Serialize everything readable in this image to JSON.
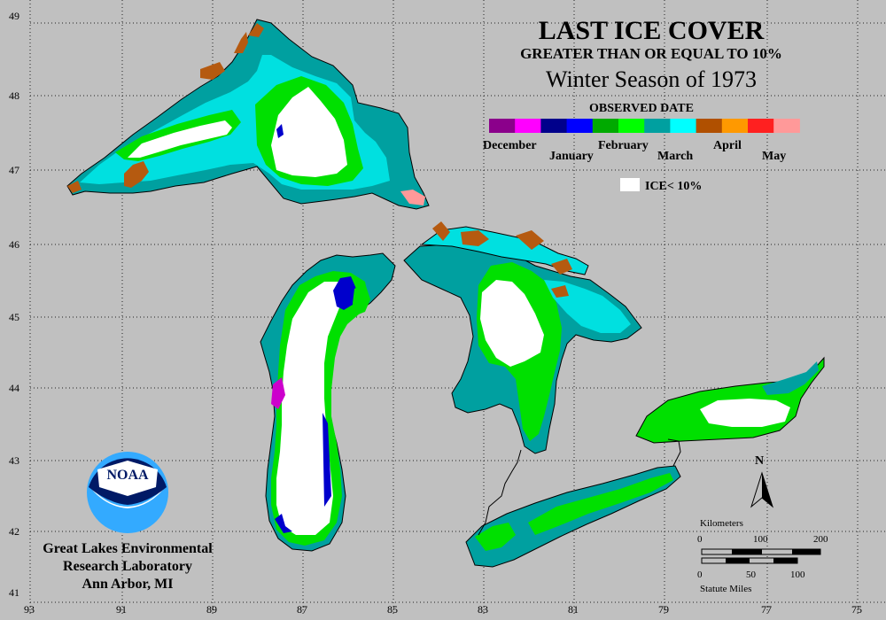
{
  "title": {
    "line1": "LAST ICE COVER",
    "line2": "GREATER THAN OR EQUAL TO 10%",
    "line3": "Winter Season of 1973"
  },
  "legend": {
    "header": "OBSERVED DATE",
    "months_top": [
      "December",
      "February",
      "April"
    ],
    "months_bottom": [
      "January",
      "March",
      "May"
    ],
    "swatches": [
      "#8b008b",
      "#ff00ff",
      "#00008b",
      "#0000ff",
      "#00aa00",
      "#00ff00",
      "#00a0a0",
      "#00ffff",
      "#b05000",
      "#ff9900",
      "#ff2020",
      "#ff9999"
    ],
    "ice_label": "ICE< 10%"
  },
  "axes": {
    "lat_labels": [
      "49",
      "48",
      "47",
      "46",
      "45",
      "44",
      "43",
      "42",
      "41"
    ],
    "lon_labels": [
      "93",
      "91",
      "89",
      "87",
      "85",
      "83",
      "81",
      "79",
      "77",
      "75"
    ]
  },
  "scale": {
    "km_label": "Kilometers",
    "km_ticks": [
      "0",
      "100",
      "200"
    ],
    "mi_ticks": [
      "0",
      "50",
      "100"
    ],
    "mi_label": "Statute Miles"
  },
  "north_label": "N",
  "logo_text": "NOAA",
  "credit": {
    "line1": "Great Lakes Environmental",
    "line2": "Research Laboratory",
    "line3": "Ann Arbor, MI"
  },
  "colors": {
    "background": "#c0c0c0",
    "land_border": "#000000",
    "january": "#0000cc",
    "february": "#00e000",
    "march_light": "#00e0e0",
    "march_dark": "#009aa0",
    "april": "#b55a10",
    "december": "#cc00cc",
    "ice_lt_10": "#ffffff"
  }
}
